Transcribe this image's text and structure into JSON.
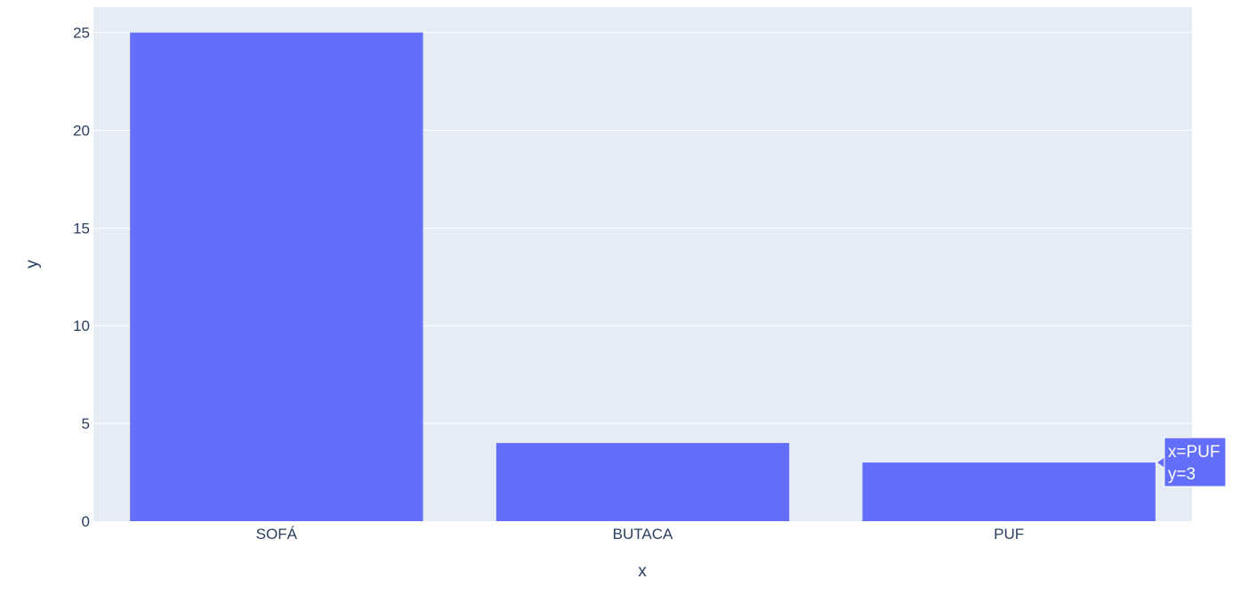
{
  "chart_data": {
    "type": "bar",
    "categories": [
      "SOFÁ",
      "BUTACA",
      "PUF"
    ],
    "values": [
      25,
      4,
      3
    ],
    "title": "",
    "xlabel": "x",
    "ylabel": "y",
    "ylim": [
      0,
      26.3
    ],
    "yticks": [
      0,
      5,
      10,
      15,
      20,
      25
    ],
    "grid": true,
    "colors": {
      "bar": "#636efa",
      "plot_bg": "#e5ecf6",
      "grid": "#ffffff",
      "text": "#2a3f5f"
    },
    "hover": {
      "category_index": 2,
      "x_text": "x=PUF",
      "y_text": "y=3"
    }
  }
}
